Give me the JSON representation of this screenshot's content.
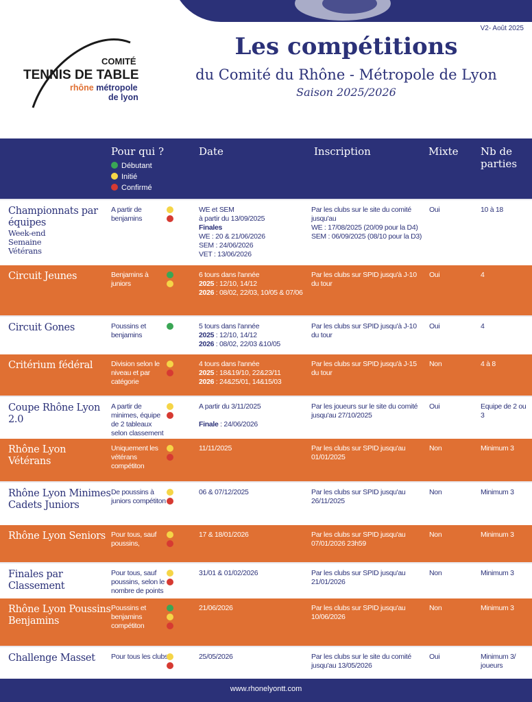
{
  "colors": {
    "navy": "#2b3178",
    "orange": "#e07033",
    "green": "#3aa655",
    "yellow": "#f5d547",
    "red": "#d63a32"
  },
  "header": {
    "version": "V2- Août 2025",
    "title": "Les compétitions",
    "subtitle": "du Comité du Rhône - Métropole de Lyon",
    "season": "Saison 2025/2026"
  },
  "logo": {
    "line1": "COMITÉ",
    "line2": "TENNIS DE TABLE",
    "line3": "rhône métropole",
    "line4": "de lyon"
  },
  "table_header": {
    "who": "Pour qui ?",
    "date": "Date",
    "inscription": "Inscription",
    "mixte": "Mixte",
    "nb": "Nb de parties",
    "legend": [
      {
        "color": "green",
        "label": "Débutant"
      },
      {
        "color": "yellow",
        "label": "Initié"
      },
      {
        "color": "red",
        "label": "Confirmé"
      }
    ]
  },
  "rows": [
    {
      "style": "white",
      "h": 97,
      "name": "Championnats par équipes",
      "sub": [
        "Week-end",
        "Semaine",
        "Vétérans"
      ],
      "who": "A partir de benjamins",
      "dots": [
        "yellow",
        "red"
      ],
      "date": [
        [
          [
            "",
            "WE et SEM"
          ]
        ],
        [
          [
            "",
            "à partir du 13/09/2025"
          ]
        ],
        [
          [
            "Finales",
            "",
            ""
          ]
        ],
        [
          [
            "",
            "WE : 20 & 21/06/2026"
          ]
        ],
        [
          [
            "",
            "SEM : 24/06/2026"
          ]
        ],
        [
          [
            "",
            "VET : 13/06/2026"
          ]
        ]
      ],
      "insc": "Par les clubs sur le site du comité jusqu'au|WE : 17/08/2025 (20/09 pour la D4)|SEM : 06/09/2025 (08/10 pour la D3)",
      "mixte": "Oui",
      "nb": "10 à 18"
    },
    {
      "style": "orange",
      "h": 73,
      "name": "Circuit Jeunes",
      "who": "Benjamins à juniors",
      "dots": [
        "green",
        "yellow"
      ],
      "date": [
        [
          [
            "",
            "6 tours dans l'année"
          ]
        ],
        [
          [
            "2025",
            ": 12/10, 14/12"
          ]
        ],
        [
          [
            "2026",
            ": 08/02, 22/03, 10/05 & 07/06"
          ]
        ]
      ],
      "insc": "Par les clubs sur SPID jusqu'à J-10 du tour",
      "mixte": "Oui",
      "nb": "4"
    },
    {
      "style": "white",
      "h": 57,
      "name": "Circuit Gones",
      "who": "Poussins et benjamins",
      "dots": [
        "green"
      ],
      "date": [
        [
          [
            "",
            "5 tours dans l'année"
          ]
        ],
        [
          [
            "2025",
            ": 12/10, 14/12"
          ]
        ],
        [
          [
            "2026",
            ": 08/02, 22/03 &10/05"
          ]
        ]
      ],
      "insc": "Par les clubs sur SPID jusqu'à J-10 du tour",
      "mixte": "Oui",
      "nb": "4"
    },
    {
      "style": "orange",
      "h": 60,
      "name": "Critérium fédéral",
      "who": "Division selon le niveau et par catégorie",
      "dots": [
        "yellow",
        "red"
      ],
      "date": [
        [
          [
            "",
            "4 tours dans l'année"
          ]
        ],
        [
          [
            "2025",
            ": 18&19/10, 22&23/11"
          ]
        ],
        [
          [
            "2026",
            ": 24&25/01, 14&15/03"
          ]
        ]
      ],
      "insc": "Par les clubs sur SPID jusqu'à J-15 du tour",
      "mixte": "Non",
      "nb": "4 à 8"
    },
    {
      "style": "white",
      "h": 63,
      "name": "Coupe Rhône Lyon 2.0",
      "who": "A partir de minimes, équipe de 2 tableaux selon classement",
      "dots": [
        "yellow",
        "red"
      ],
      "date": [
        [
          [
            "",
            "A partir du 3/11/2025"
          ]
        ],
        [
          [
            "",
            ""
          ]
        ],
        [
          [
            "Finale",
            ": 24/06/2026"
          ]
        ]
      ],
      "insc": "Par les joueurs sur le site du comité jusqu'au 27/10/2025",
      "mixte": "Oui",
      "nb": "Equipe de 2 ou 3"
    },
    {
      "style": "orange",
      "h": 62,
      "name": "Rhône Lyon Vétérans",
      "who": "Uniquement les vétérans compétiton",
      "dots": [
        "yellow",
        "red"
      ],
      "date": [
        [
          [
            "",
            "11/11/2025"
          ]
        ]
      ],
      "insc": "Par les clubs sur SPID jusqu'au 01/01/2025",
      "mixte": "Non",
      "nb": "Minimum 3"
    },
    {
      "style": "white",
      "h": 64,
      "name": "Rhône Lyon Minimes Cadets Juniors",
      "who": "De poussins à juniors compétiton",
      "dots": [
        "yellow",
        "red"
      ],
      "date": [
        [
          [
            "",
            "06 & 07/12/2025"
          ]
        ]
      ],
      "insc": "Par les clubs sur SPID jusqu'au 26/11/2025",
      "mixte": "Non",
      "nb": "Minimum 3"
    },
    {
      "style": "orange",
      "h": 54,
      "name": "Rhône Lyon Seniors",
      "who": "Pour tous, sauf poussins,",
      "dots": [
        "yellow",
        "red"
      ],
      "date": [
        [
          [
            "",
            "17 & 18/01/2026"
          ]
        ]
      ],
      "insc": "Par les clubs sur SPID jusqu'au 07/01/2026 23h59",
      "mixte": "Non",
      "nb": "Minimum 3"
    },
    {
      "style": "white",
      "h": 53,
      "name": "Finales par Classement",
      "who": "Pour tous, sauf poussins, selon le nombre de points",
      "dots": [
        "yellow",
        "red"
      ],
      "date": [
        [
          [
            "",
            "31/01 & 01/02/2026"
          ]
        ]
      ],
      "insc": "Par les clubs sur SPID jusqu'au 21/01/2026",
      "mixte": "Non",
      "nb": "Minimum 3"
    },
    {
      "style": "orange",
      "h": 69,
      "name": "Rhône Lyon Poussins Benjamins",
      "who": "Poussins et benjamins compétiton",
      "dots": [
        "green",
        "yellow",
        "red"
      ],
      "date": [
        [
          [
            "",
            "21/06/2026"
          ]
        ]
      ],
      "insc": "Par les clubs sur SPID jusqu'au 10/06/2026",
      "mixte": "Non",
      "nb": "Minimum 3"
    },
    {
      "style": "white",
      "h": 48,
      "name": "Challenge Masset",
      "who": "Pour tous les clubs",
      "dots": [
        "yellow",
        "red"
      ],
      "date": [
        [
          [
            "",
            "25/05/2026"
          ]
        ]
      ],
      "insc": "Par les clubs sur le site du comité jusqu'au 13/05/2026",
      "mixte": "Oui",
      "nb": "Minimum 3/ joueurs"
    }
  ],
  "footer": {
    "url": "www.rhonelyontt.com"
  }
}
